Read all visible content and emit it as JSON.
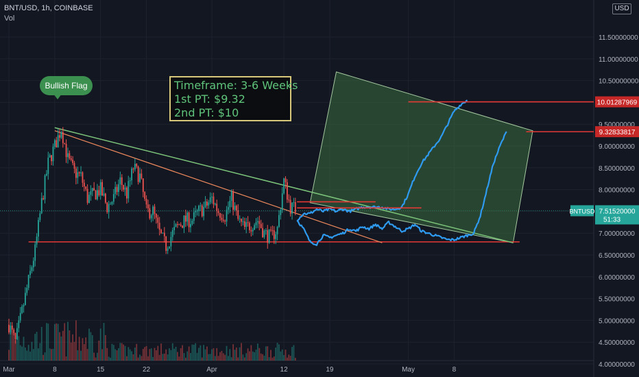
{
  "header": {
    "symbol_line": "BNT/USD, 1h, COINBASE",
    "indicator": "Vol",
    "currency": "USD"
  },
  "annotations": {
    "bullish_flag": "Bullish Flag",
    "note_lines": [
      "Timeframe: 3-6 Weeks",
      "1st PT: $9.32",
      "2nd PT: $10"
    ]
  },
  "price_labels": {
    "target_2": "10.01287969",
    "target_1": "9.32833817",
    "current_symbol": "BNTUSD",
    "current_price": "7.51520000",
    "countdown": "51:33"
  },
  "colors": {
    "background": "#131722",
    "up_candle": "#26a69a",
    "down_candle": "#ef5350",
    "projection": "#2f9bf0",
    "flag_line": "#7cc47a",
    "support_line": "#e53935",
    "target_zone": "#3a6b3f",
    "note_text": "#5fc47b",
    "note_border": "#d8c87a",
    "axis_text": "#b2b5be"
  },
  "chart_data": {
    "type": "line",
    "title": "BNT/USD, 1h, COINBASE",
    "xlabel": "",
    "ylabel": "USD",
    "ylim": [
      3.6,
      11.6
    ],
    "grid": true,
    "y_ticks": [
      "11.50000000",
      "11.00000000",
      "10.50000000",
      "10.00000000",
      "9.50000000",
      "9.00000000",
      "8.50000000",
      "8.00000000",
      "7.50000000",
      "7.00000000",
      "6.50000000",
      "6.00000000",
      "5.50000000",
      "5.00000000",
      "4.50000000",
      "4.00000000"
    ],
    "x_ticks": [
      "Mar",
      "8",
      "15",
      "22",
      "Apr",
      "12",
      "19",
      "May",
      "8"
    ],
    "x_tick_days": [
      0,
      7,
      14,
      21,
      31,
      42,
      49,
      61,
      68
    ],
    "price_path": [
      [
        0,
        4.9
      ],
      [
        1,
        4.5
      ],
      [
        2,
        5.2
      ],
      [
        3,
        5.9
      ],
      [
        4,
        6.6
      ],
      [
        5,
        7.7
      ],
      [
        6,
        8.6
      ],
      [
        7,
        9.0
      ],
      [
        8,
        9.4
      ],
      [
        9,
        8.7
      ],
      [
        10,
        8.4
      ],
      [
        11,
        8.3
      ],
      [
        12,
        7.8
      ],
      [
        13,
        7.9
      ],
      [
        14,
        8.0
      ],
      [
        15,
        7.6
      ],
      [
        16,
        7.8
      ],
      [
        17,
        8.2
      ],
      [
        18,
        7.9
      ],
      [
        19,
        8.5
      ],
      [
        20,
        8.3
      ],
      [
        21,
        7.5
      ],
      [
        22,
        7.5
      ],
      [
        23,
        7.0
      ],
      [
        24,
        6.7
      ],
      [
        25,
        7.0
      ],
      [
        26,
        7.2
      ],
      [
        27,
        7.3
      ],
      [
        28,
        7.3
      ],
      [
        29,
        7.5
      ],
      [
        30,
        7.6
      ],
      [
        31,
        7.8
      ],
      [
        32,
        7.5
      ],
      [
        33,
        7.4
      ],
      [
        34,
        7.8
      ],
      [
        35,
        7.3
      ],
      [
        36,
        7.1
      ],
      [
        37,
        7.2
      ],
      [
        38,
        7.3
      ],
      [
        39,
        7.0
      ],
      [
        40,
        6.9
      ],
      [
        41,
        7.1
      ],
      [
        42,
        8.2
      ],
      [
        43,
        7.6
      ],
      [
        44,
        7.55
      ]
    ],
    "projection_1": [
      [
        44,
        7.3
      ],
      [
        45,
        7.45
      ],
      [
        46,
        7.45
      ],
      [
        47,
        7.55
      ],
      [
        48,
        7.5
      ],
      [
        49,
        7.55
      ],
      [
        50,
        7.5
      ],
      [
        51,
        7.55
      ],
      [
        52,
        7.5
      ],
      [
        53,
        7.55
      ],
      [
        54,
        7.6
      ],
      [
        55,
        7.6
      ],
      [
        56,
        7.6
      ],
      [
        57,
        7.6
      ],
      [
        58,
        7.55
      ],
      [
        59,
        7.55
      ],
      [
        60,
        7.6
      ],
      [
        61,
        7.9
      ],
      [
        62,
        8.3
      ],
      [
        63,
        8.6
      ],
      [
        64,
        8.8
      ],
      [
        65,
        9.0
      ],
      [
        66,
        9.2
      ],
      [
        67,
        9.5
      ],
      [
        68,
        9.8
      ],
      [
        69,
        9.95
      ],
      [
        70,
        10.05
      ]
    ],
    "projection_2": [
      [
        44,
        7.3
      ],
      [
        45,
        7.1
      ],
      [
        46,
        6.8
      ],
      [
        47,
        6.75
      ],
      [
        48,
        6.95
      ],
      [
        49,
        6.9
      ],
      [
        50,
        6.95
      ],
      [
        51,
        7.0
      ],
      [
        52,
        7.1
      ],
      [
        53,
        7.05
      ],
      [
        54,
        7.15
      ],
      [
        55,
        7.1
      ],
      [
        56,
        7.2
      ],
      [
        57,
        7.1
      ],
      [
        58,
        7.25
      ],
      [
        59,
        7.15
      ],
      [
        60,
        7.05
      ],
      [
        61,
        7.1
      ],
      [
        62,
        7.2
      ],
      [
        63,
        7.05
      ],
      [
        64,
        7.0
      ],
      [
        65,
        6.95
      ],
      [
        66,
        6.9
      ],
      [
        67,
        6.85
      ],
      [
        68,
        6.85
      ],
      [
        69,
        6.9
      ],
      [
        70,
        6.95
      ],
      [
        71,
        7.0
      ],
      [
        72,
        7.4
      ],
      [
        73,
        8.0
      ],
      [
        74,
        8.6
      ],
      [
        75,
        9.0
      ],
      [
        76,
        9.33
      ]
    ],
    "flag_top_line": [
      [
        7,
        9.42
      ],
      [
        77,
        6.78
      ]
    ],
    "flag_inner_line": [
      [
        7,
        9.35
      ],
      [
        57,
        6.78
      ]
    ],
    "support_line": [
      [
        3,
        6.8
      ],
      [
        78,
        6.8
      ]
    ],
    "target_zone_corners": [
      [
        46,
        7.7
      ],
      [
        50,
        10.7
      ],
      [
        80,
        9.35
      ],
      [
        77,
        6.78
      ]
    ],
    "horizontal_targets": [
      {
        "from_day": 61,
        "value": 10.01287969
      },
      {
        "from_day": 79,
        "value": 9.32833817
      },
      {
        "from_day": 44,
        "value": 7.72
      },
      {
        "from_day": 44,
        "value": 7.58
      }
    ],
    "volume_note": "volume bars along the bottom, heavier in early March"
  }
}
